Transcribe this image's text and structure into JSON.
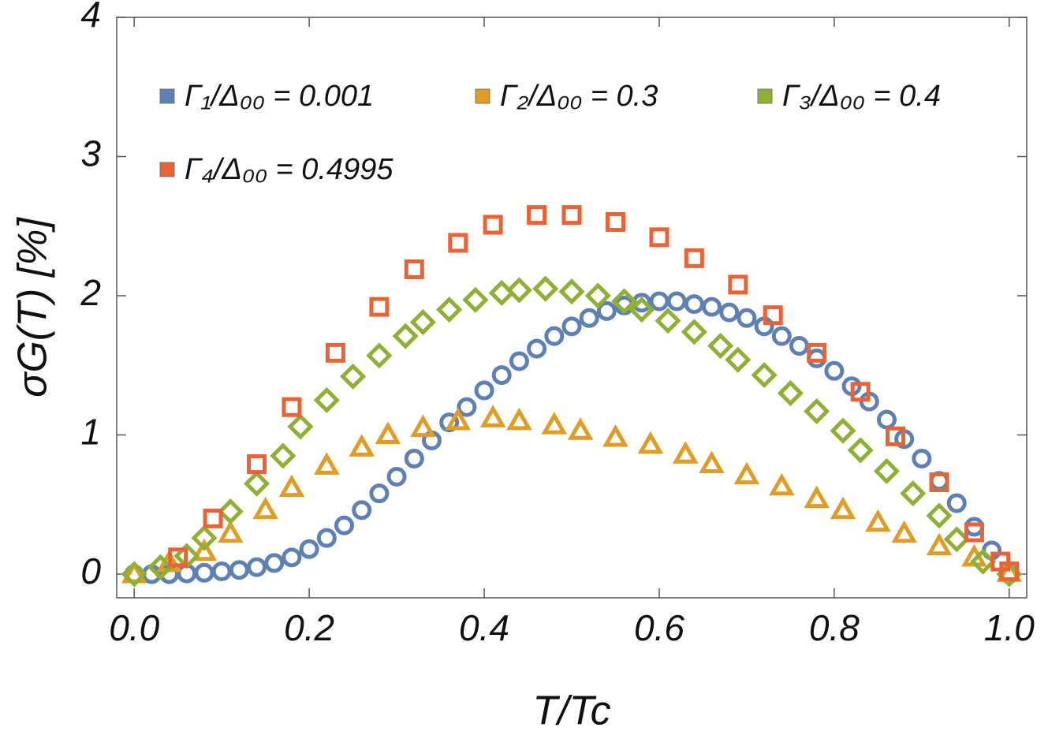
{
  "chart_data": {
    "type": "scatter",
    "x_label": "T/Tc",
    "y_label": "σG(T) [%]",
    "xlim": [
      -0.02,
      1.02
    ],
    "ylim": [
      -0.17,
      4
    ],
    "xticks": [
      {
        "value": 0,
        "label": "0.0"
      },
      {
        "value": 0.2,
        "label": "0.2"
      },
      {
        "value": 0.4,
        "label": "0.4"
      },
      {
        "value": 0.6,
        "label": "0.6"
      },
      {
        "value": 0.8,
        "label": "0.8"
      },
      {
        "value": 1,
        "label": "1.0"
      }
    ],
    "yticks": [
      0,
      1,
      2,
      3,
      4
    ],
    "legend": "top left",
    "series": [
      {
        "name": "Γ₁/Δ₀₀ = 0.001",
        "color": "#5e81b5",
        "marker": "circle",
        "x": [
          0,
          0.02,
          0.04,
          0.06,
          0.08,
          0.1,
          0.12,
          0.14,
          0.16,
          0.18,
          0.2,
          0.22,
          0.24,
          0.26,
          0.28,
          0.3,
          0.32,
          0.34,
          0.36,
          0.38,
          0.4,
          0.42,
          0.44,
          0.46,
          0.48,
          0.5,
          0.52,
          0.54,
          0.56,
          0.58,
          0.6,
          0.62,
          0.64,
          0.66,
          0.68,
          0.7,
          0.72,
          0.74,
          0.76,
          0.78,
          0.8,
          0.82,
          0.84,
          0.86,
          0.88,
          0.9,
          0.92,
          0.94,
          0.96,
          0.98,
          1.0
        ],
        "values": [
          0,
          0,
          0,
          0.005,
          0.01,
          0.02,
          0.03,
          0.05,
          0.08,
          0.12,
          0.18,
          0.26,
          0.35,
          0.46,
          0.58,
          0.7,
          0.83,
          0.96,
          1.09,
          1.2,
          1.32,
          1.43,
          1.53,
          1.62,
          1.71,
          1.78,
          1.84,
          1.89,
          1.93,
          1.95,
          1.96,
          1.96,
          1.94,
          1.92,
          1.88,
          1.84,
          1.78,
          1.71,
          1.64,
          1.55,
          1.46,
          1.35,
          1.24,
          1.11,
          0.97,
          0.83,
          0.67,
          0.51,
          0.34,
          0.17,
          0
        ]
      },
      {
        "name": "Γ₂/Δ₀₀ = 0.3",
        "color": "#e19c24",
        "marker": "triangle",
        "x": [
          0,
          0.04,
          0.08,
          0.11,
          0.15,
          0.18,
          0.22,
          0.26,
          0.29,
          0.33,
          0.37,
          0.41,
          0.44,
          0.48,
          0.51,
          0.55,
          0.59,
          0.63,
          0.66,
          0.7,
          0.74,
          0.78,
          0.81,
          0.85,
          0.88,
          0.92,
          0.96,
          1.0
        ],
        "values": [
          0,
          0.08,
          0.16,
          0.29,
          0.46,
          0.62,
          0.78,
          0.91,
          1.0,
          1.05,
          1.1,
          1.12,
          1.1,
          1.07,
          1.03,
          0.98,
          0.93,
          0.86,
          0.79,
          0.71,
          0.63,
          0.54,
          0.46,
          0.37,
          0.29,
          0.2,
          0.12,
          0.01
        ]
      },
      {
        "name": "Γ₃/Δ₀₀ = 0.4",
        "color": "#8fb032",
        "marker": "diamond",
        "x": [
          0,
          0.03,
          0.06,
          0.08,
          0.11,
          0.14,
          0.17,
          0.19,
          0.22,
          0.25,
          0.28,
          0.31,
          0.33,
          0.36,
          0.39,
          0.42,
          0.44,
          0.47,
          0.5,
          0.53,
          0.56,
          0.58,
          0.61,
          0.64,
          0.67,
          0.69,
          0.72,
          0.75,
          0.78,
          0.81,
          0.83,
          0.86,
          0.89,
          0.92,
          0.94,
          0.97,
          1.0
        ],
        "values": [
          0,
          0.05,
          0.13,
          0.26,
          0.45,
          0.65,
          0.85,
          1.06,
          1.25,
          1.42,
          1.57,
          1.71,
          1.81,
          1.9,
          1.97,
          2.02,
          2.04,
          2.05,
          2.03,
          2.0,
          1.96,
          1.9,
          1.82,
          1.74,
          1.64,
          1.54,
          1.43,
          1.3,
          1.17,
          1.03,
          0.89,
          0.74,
          0.58,
          0.42,
          0.25,
          0.09,
          0
        ]
      },
      {
        "name": "Γ₄/Δ₀₀ = 0.4995",
        "color": "#eb6235",
        "marker": "square",
        "x": [
          0.05,
          0.09,
          0.14,
          0.18,
          0.23,
          0.28,
          0.32,
          0.37,
          0.41,
          0.46,
          0.5,
          0.55,
          0.6,
          0.64,
          0.69,
          0.73,
          0.78,
          0.83,
          0.87,
          0.92,
          0.96,
          0.99,
          1.0
        ],
        "values": [
          0.12,
          0.4,
          0.79,
          1.2,
          1.59,
          1.92,
          2.19,
          2.38,
          2.51,
          2.58,
          2.58,
          2.53,
          2.42,
          2.27,
          2.08,
          1.86,
          1.59,
          1.31,
          0.99,
          0.66,
          0.3,
          0.09,
          0.02
        ]
      }
    ]
  }
}
